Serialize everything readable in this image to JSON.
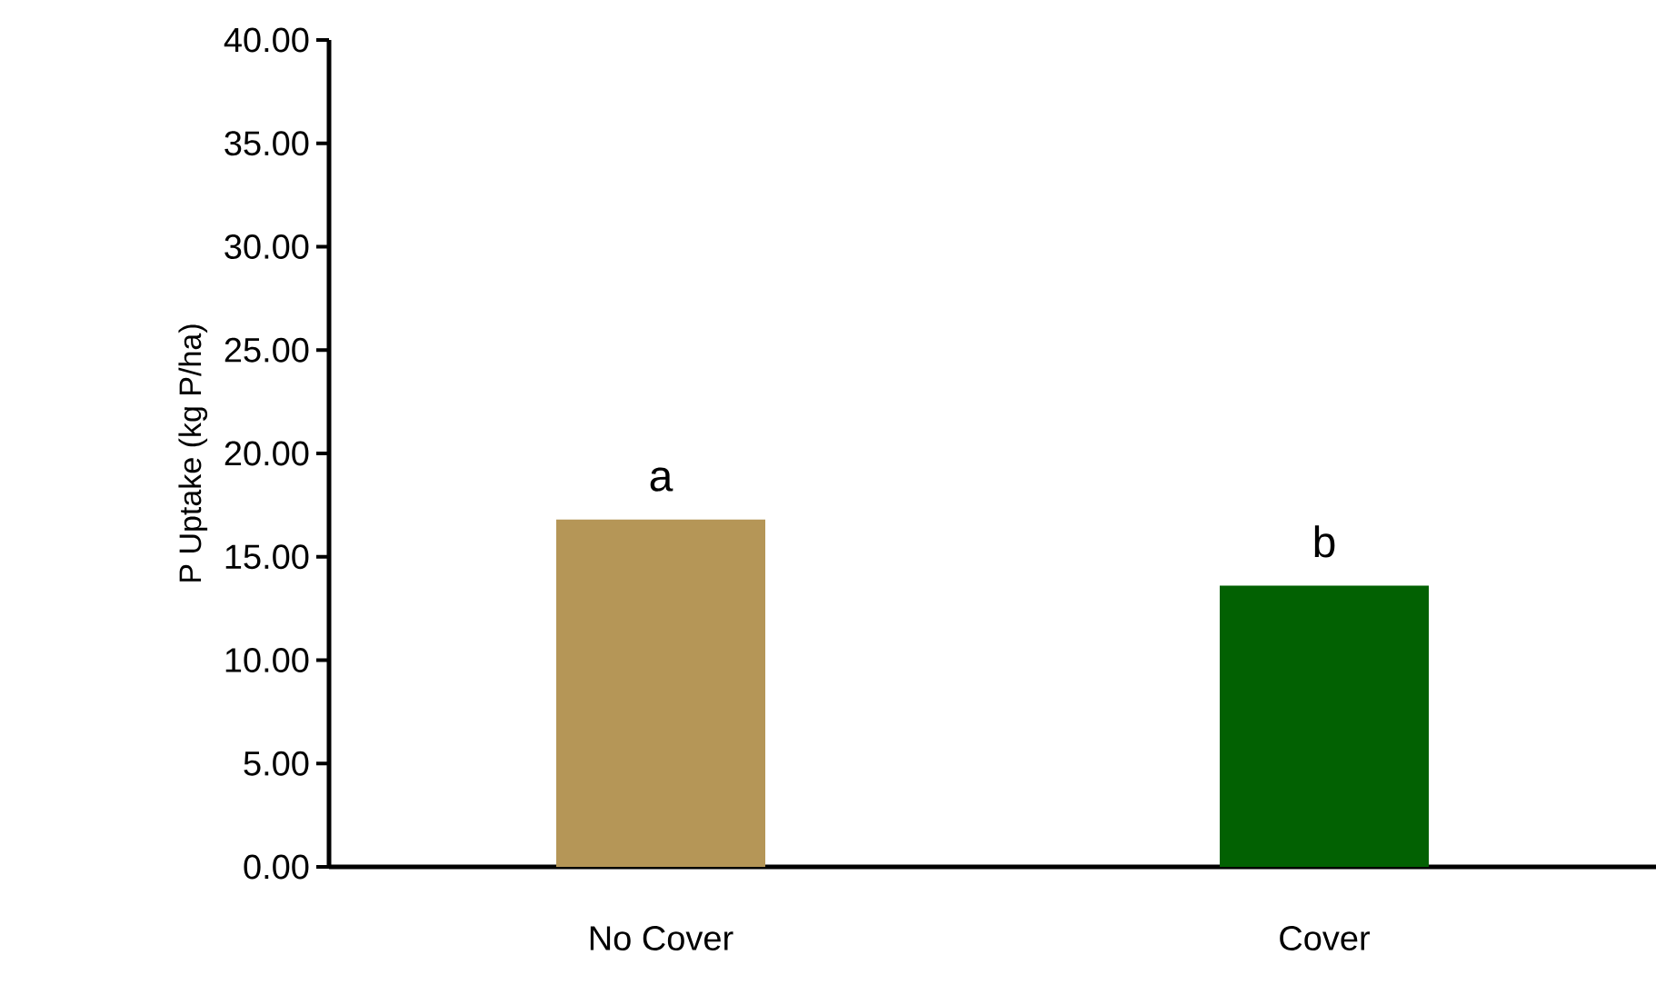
{
  "chart_data": {
    "type": "bar",
    "ylabel": "P Uptake (kg P/ha)",
    "categories": [
      "No Cover",
      "Cover"
    ],
    "values": [
      16.8,
      13.6
    ],
    "colors": [
      "#b59657",
      "#026102"
    ],
    "ylim": [
      0,
      40
    ],
    "yticks": [
      {
        "value": 0,
        "label": "0.00"
      },
      {
        "value": 5,
        "label": "5.00"
      },
      {
        "value": 10,
        "label": "10.00"
      },
      {
        "value": 15,
        "label": "15.00"
      },
      {
        "value": 20,
        "label": "20.00"
      },
      {
        "value": 25,
        "label": "25.00"
      },
      {
        "value": 30,
        "label": "30.00"
      },
      {
        "value": 35,
        "label": "35.00"
      },
      {
        "value": 40,
        "label": "40.00"
      }
    ],
    "annotations": [
      {
        "text": "a",
        "x": "No Cover",
        "y": 16.8
      },
      {
        "text": "b",
        "x": "Cover",
        "y": 13.6
      }
    ],
    "grid": false
  }
}
